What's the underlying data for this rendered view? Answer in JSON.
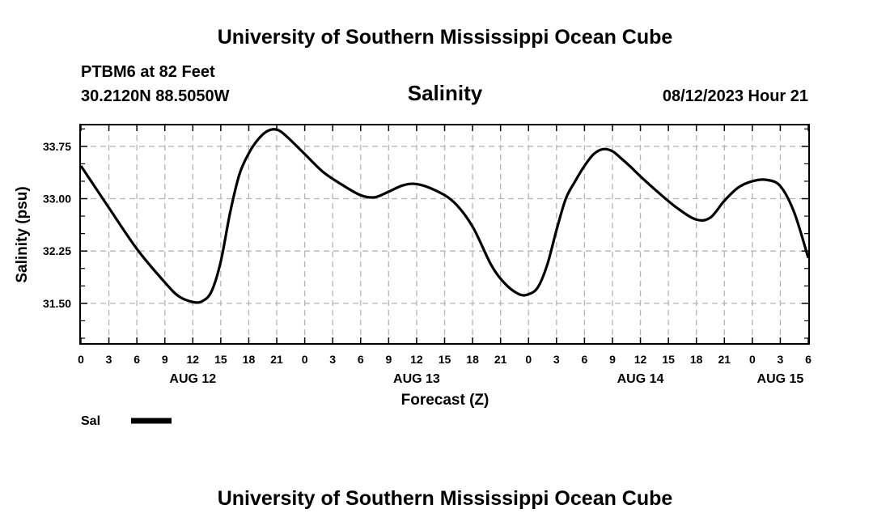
{
  "header": {
    "title": "University of Southern Mississippi Ocean Cube",
    "station": "PTBM6 at 82 Feet",
    "coords": "30.2120N  88.5050W",
    "variable": "Salinity",
    "datetime": "08/12/2023 Hour 21"
  },
  "footer": {
    "title": "University of Southern Mississippi Ocean Cube"
  },
  "legend": {
    "label": "Sal"
  },
  "chart_data": {
    "type": "line",
    "title": "Salinity",
    "xlabel": "Forecast (Z)",
    "ylabel": "Salinity (psu)",
    "xlim": [
      0,
      78
    ],
    "ylim": [
      30.93,
      34.05
    ],
    "grid": true,
    "x_ticks": [
      0,
      3,
      6,
      9,
      12,
      15,
      18,
      21,
      24,
      27,
      30,
      33,
      36,
      39,
      42,
      45,
      48,
      51,
      54,
      57,
      60,
      63,
      66,
      69,
      72,
      75,
      78
    ],
    "x_tick_labels": [
      "0",
      "3",
      "6",
      "9",
      "12",
      "15",
      "18",
      "21",
      "0",
      "3",
      "6",
      "9",
      "12",
      "15",
      "18",
      "21",
      "0",
      "3",
      "6",
      "9",
      "12",
      "15",
      "18",
      "21",
      "0",
      "3",
      "6"
    ],
    "day_labels": [
      {
        "label": "AUG 12",
        "x": 12
      },
      {
        "label": "AUG 13",
        "x": 36
      },
      {
        "label": "AUG 14",
        "x": 60
      },
      {
        "label": "AUG 15",
        "x": 75
      }
    ],
    "y_ticks": [
      31.5,
      32.25,
      33.0,
      33.75
    ],
    "y_tick_labels": [
      "31.50",
      "32.25",
      "33.00",
      "33.75"
    ],
    "y_minor_ticks": [
      31.0,
      31.25,
      31.75,
      32.0,
      32.5,
      32.75,
      33.25,
      33.5,
      34.0
    ],
    "series": [
      {
        "name": "Sal",
        "color": "#000000",
        "x": [
          0,
          3,
          6,
          9,
          10.5,
          12,
          13,
          14,
          15,
          16,
          17,
          18,
          19,
          20,
          21,
          22,
          24,
          26,
          28,
          30,
          31.5,
          33,
          34.5,
          36,
          38,
          40,
          42,
          44,
          45.5,
          47,
          48,
          49,
          50,
          51,
          52,
          53,
          54,
          55,
          56,
          57,
          58,
          59,
          60,
          62,
          64,
          66,
          67.5,
          69,
          70.5,
          72,
          73.5,
          75,
          76.5,
          78
        ],
        "y": [
          33.47,
          32.87,
          32.28,
          31.8,
          31.6,
          31.52,
          31.53,
          31.67,
          32.1,
          32.8,
          33.35,
          33.65,
          33.85,
          33.97,
          33.99,
          33.9,
          33.64,
          33.38,
          33.2,
          33.05,
          33.02,
          33.1,
          33.19,
          33.21,
          33.12,
          32.95,
          32.6,
          32.05,
          31.78,
          31.63,
          31.63,
          31.73,
          32.05,
          32.55,
          33.0,
          33.25,
          33.47,
          33.64,
          33.71,
          33.68,
          33.57,
          33.45,
          33.32,
          33.08,
          32.86,
          32.7,
          32.73,
          32.97,
          33.16,
          33.25,
          33.27,
          33.18,
          32.8,
          32.15
        ]
      }
    ]
  }
}
